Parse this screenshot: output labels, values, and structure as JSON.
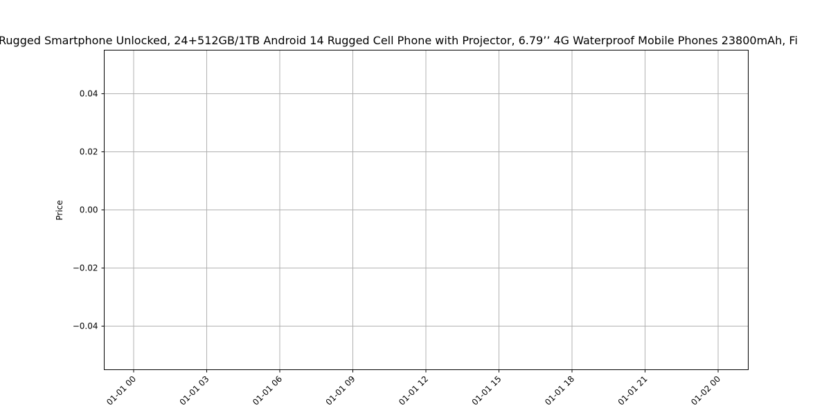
{
  "chart_data": {
    "type": "line",
    "title": "Rugged Smartphone Unlocked, 24+512GB/1TB Android 14 Rugged Cell Phone with Projector, 6.79’’ 4G Waterproof Mobile Phones 23800mAh, Fi",
    "xlabel": "",
    "ylabel": "Price",
    "x_ticks": [
      "01-01 00",
      "01-01 03",
      "01-01 06",
      "01-01 09",
      "01-01 12",
      "01-01 15",
      "01-01 18",
      "01-01 21",
      "01-02 00"
    ],
    "y_ticks": [
      "0.04",
      "0.02",
      "0.00",
      "−0.02",
      "−0.04"
    ],
    "y_tick_values": [
      0.04,
      0.02,
      0.0,
      -0.02,
      -0.04
    ],
    "ylim": [
      -0.055,
      0.055
    ],
    "grid": true,
    "series": []
  }
}
